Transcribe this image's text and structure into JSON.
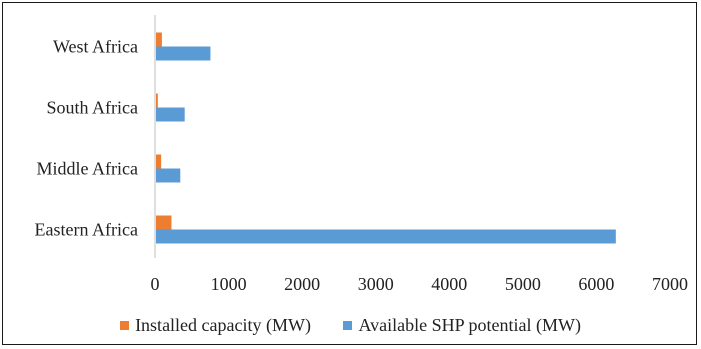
{
  "chart_data": {
    "type": "bar",
    "orientation": "horizontal",
    "categories": [
      "West Africa",
      "South Africa",
      "Middle Africa",
      "Eastern Africa"
    ],
    "series": [
      {
        "name": "Installed capacity (MW)",
        "color": "#ed7d31",
        "values": [
          80,
          25,
          70,
          210
        ]
      },
      {
        "name": "Available SHP potential (MW)",
        "color": "#5b9bd5",
        "values": [
          740,
          390,
          330,
          6250
        ]
      }
    ],
    "xlim": [
      0,
      7000
    ],
    "xticks": [
      "0",
      "1000",
      "2000",
      "3000",
      "4000",
      "5000",
      "6000",
      "7000"
    ],
    "grid": false,
    "legend_position": "bottom"
  }
}
